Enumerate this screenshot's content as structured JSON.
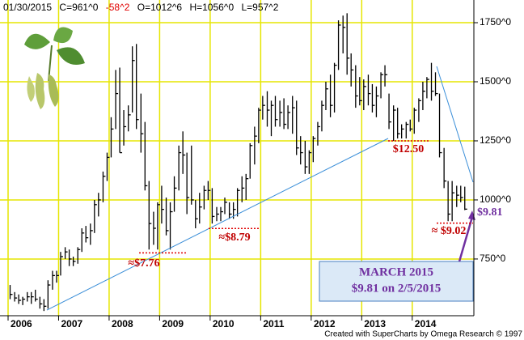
{
  "chart_data": {
    "type": "ohlc",
    "header": {
      "date": "01/30/2015",
      "close": "C=961^0",
      "change": "-58^2",
      "open": "O=1012^6",
      "high": "H=1056^0",
      "low": "L=957^2"
    },
    "footer": "Created with SuperCharts by Omega Research © 1997",
    "xlim": [
      2005.84,
      2015.22
    ],
    "xticks": [
      {
        "value": 2006,
        "label": "2006"
      },
      {
        "value": 2007,
        "label": "2007"
      },
      {
        "value": 2008,
        "label": "2008"
      },
      {
        "value": 2009,
        "label": "2009"
      },
      {
        "value": 2010,
        "label": "2010"
      },
      {
        "value": 2011,
        "label": "2011"
      },
      {
        "value": 2012,
        "label": "2012"
      },
      {
        "value": 2013,
        "label": "2013"
      },
      {
        "value": 2014,
        "label": "2014"
      }
    ],
    "ylim": [
      510,
      1846
    ],
    "yticks": [
      {
        "value": 750,
        "label": "750^0"
      },
      {
        "value": 1000,
        "label": "1000^0"
      },
      {
        "value": 1250,
        "label": "1250^0"
      },
      {
        "value": 1500,
        "label": "1500^0"
      },
      {
        "value": 1750,
        "label": "1750^0"
      }
    ],
    "grid": true,
    "grid_color": "#e6e600",
    "color": "#000000",
    "x": [
      2006.04,
      2006.13,
      2006.21,
      2006.29,
      2006.38,
      2006.46,
      2006.54,
      2006.63,
      2006.71,
      2006.79,
      2006.88,
      2006.96,
      2007.04,
      2007.13,
      2007.21,
      2007.29,
      2007.38,
      2007.46,
      2007.54,
      2007.63,
      2007.71,
      2007.79,
      2007.88,
      2007.96,
      2008.04,
      2008.13,
      2008.21,
      2008.29,
      2008.38,
      2008.46,
      2008.54,
      2008.63,
      2008.71,
      2008.79,
      2008.88,
      2008.96,
      2009.04,
      2009.13,
      2009.21,
      2009.29,
      2009.38,
      2009.46,
      2009.54,
      2009.63,
      2009.71,
      2009.79,
      2009.88,
      2009.96,
      2010.04,
      2010.13,
      2010.21,
      2010.29,
      2010.38,
      2010.46,
      2010.54,
      2010.63,
      2010.71,
      2010.79,
      2010.88,
      2010.96,
      2011.04,
      2011.13,
      2011.21,
      2011.29,
      2011.38,
      2011.46,
      2011.54,
      2011.63,
      2011.71,
      2011.79,
      2011.88,
      2011.96,
      2012.04,
      2012.13,
      2012.21,
      2012.29,
      2012.38,
      2012.46,
      2012.54,
      2012.63,
      2012.71,
      2012.79,
      2012.88,
      2012.96,
      2013.04,
      2013.13,
      2013.21,
      2013.29,
      2013.38,
      2013.46,
      2013.54,
      2013.63,
      2013.71,
      2013.79,
      2013.88,
      2013.96,
      2014.04,
      2014.13,
      2014.21,
      2014.29,
      2014.38,
      2014.46,
      2014.54,
      2014.63,
      2014.71,
      2014.79,
      2014.88,
      2014.96,
      2015.04
    ],
    "high": [
      640,
      610,
      600,
      590,
      610,
      610,
      620,
      590,
      580,
      660,
      700,
      700,
      780,
      800,
      790,
      760,
      800,
      880,
      890,
      900,
      1000,
      1030,
      1120,
      1200,
      1350,
      1550,
      1560,
      1380,
      1400,
      1650,
      1660,
      1450,
      1330,
      1080,
      950,
      990,
      1060,
      1010,
      990,
      1100,
      1230,
      1290,
      1200,
      1230,
      1000,
      1030,
      1060,
      1080,
      1050,
      970,
      970,
      1010,
      990,
      990,
      1050,
      1100,
      1110,
      1240,
      1310,
      1390,
      1440,
      1460,
      1420,
      1440,
      1420,
      1430,
      1400,
      1440,
      1420,
      1270,
      1250,
      1210,
      1270,
      1330,
      1420,
      1500,
      1530,
      1580,
      1760,
      1780,
      1790,
      1620,
      1570,
      1520,
      1510,
      1530,
      1490,
      1480,
      1540,
      1570,
      1450,
      1400,
      1390,
      1320,
      1330,
      1340,
      1390,
      1430,
      1500,
      1520,
      1580,
      1540,
      1450,
      1220,
      1080,
      1080,
      1060,
      1060,
      1056
    ],
    "low": [
      580,
      570,
      560,
      555,
      570,
      560,
      570,
      540,
      530,
      540,
      620,
      650,
      680,
      750,
      720,
      720,
      730,
      780,
      820,
      810,
      860,
      930,
      990,
      1080,
      1180,
      1300,
      1200,
      1230,
      1290,
      1370,
      1300,
      1200,
      1040,
      790,
      810,
      790,
      900,
      850,
      790,
      950,
      1040,
      1110,
      940,
      980,
      880,
      900,
      960,
      1000,
      900,
      910,
      910,
      940,
      920,
      920,
      930,
      990,
      1000,
      1090,
      1150,
      1240,
      1340,
      1310,
      1270,
      1310,
      1310,
      1300,
      1300,
      1280,
      1190,
      1150,
      1110,
      1110,
      1160,
      1230,
      1290,
      1380,
      1350,
      1370,
      1550,
      1620,
      1530,
      1480,
      1390,
      1400,
      1380,
      1400,
      1370,
      1350,
      1430,
      1480,
      1300,
      1250,
      1260,
      1260,
      1260,
      1290,
      1280,
      1330,
      1380,
      1430,
      1420,
      1440,
      1180,
      1050,
      910,
      910,
      970,
      990,
      957
    ],
    "close": [
      600,
      585,
      575,
      580,
      590,
      590,
      580,
      560,
      550,
      640,
      680,
      680,
      760,
      780,
      750,
      740,
      790,
      860,
      840,
      870,
      980,
      1000,
      1100,
      1180,
      1300,
      1450,
      1200,
      1310,
      1360,
      1590,
      1340,
      1280,
      1060,
      900,
      880,
      980,
      960,
      870,
      950,
      1050,
      1200,
      1190,
      1010,
      1000,
      920,
      970,
      1040,
      1040,
      930,
      940,
      950,
      990,
      940,
      960,
      1040,
      1050,
      1090,
      1230,
      1270,
      1380,
      1400,
      1380,
      1400,
      1340,
      1370,
      1320,
      1370,
      1390,
      1220,
      1200,
      1140,
      1200,
      1260,
      1310,
      1400,
      1470,
      1400,
      1570,
      1740,
      1730,
      1600,
      1550,
      1440,
      1420,
      1480,
      1450,
      1400,
      1440,
      1530,
      1530,
      1330,
      1380,
      1280,
      1300,
      1320,
      1300,
      1380,
      1420,
      1460,
      1510,
      1460,
      1450,
      1200,
      1080,
      940,
      1030,
      1020,
      1010,
      961
    ],
    "annotations": [
      {
        "text": "≈$7.76",
        "level": 776,
        "color": "#c00000"
      },
      {
        "text": "≈$8.79",
        "level": 879,
        "color": "#c00000"
      },
      {
        "text": "$12.50",
        "level": 1250,
        "color": "#c00000"
      },
      {
        "text": "≈ $9.02",
        "level": 902,
        "color": "#c00000"
      },
      {
        "text": "$9.81",
        "level": 981,
        "color": "#7030a0"
      }
    ],
    "callout": {
      "title": "MARCH 2015",
      "text": "$9.81 on 2/5/2015"
    }
  }
}
